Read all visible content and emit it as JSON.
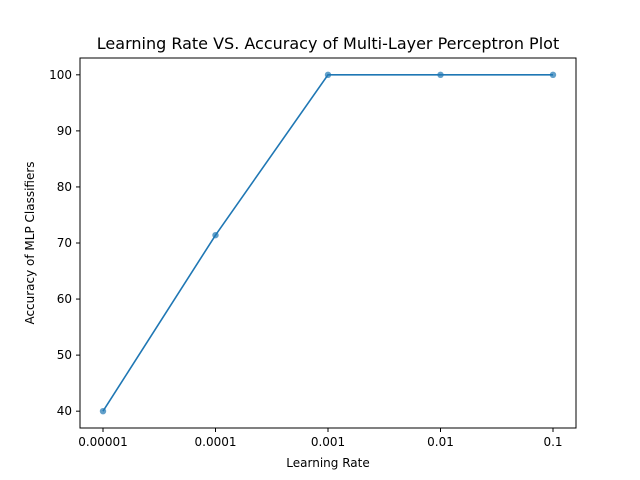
{
  "chart_data": {
    "type": "line",
    "title": "Learning Rate VS. Accuracy of Multi-Layer Perceptron Plot",
    "xlabel": "Learning Rate",
    "ylabel": "Accuracy of MLP Classifiers",
    "categories": [
      "0.00001",
      "0.0001",
      "0.001",
      "0.01",
      "0.1"
    ],
    "series": [
      {
        "values": [
          40,
          71.4,
          100,
          100,
          100
        ],
        "color": "#1f77b4"
      }
    ],
    "ylim": [
      37,
      103
    ],
    "yticks": [
      40,
      50,
      60,
      70,
      80,
      90,
      100
    ],
    "grid": false
  }
}
